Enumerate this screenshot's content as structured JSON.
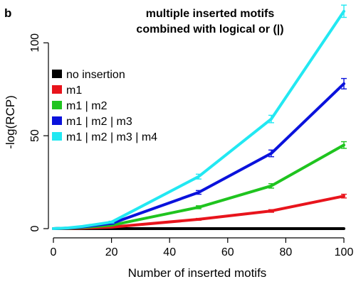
{
  "panel_label": "b",
  "chart_data": {
    "type": "line",
    "title_lines": [
      "multiple inserted motifs",
      "combined with logical or (|)"
    ],
    "xlabel": "Number of inserted motifs",
    "ylabel": "-log(RCP)",
    "xlim": [
      0,
      100
    ],
    "ylim": [
      0,
      120
    ],
    "xticks": [
      0,
      20,
      40,
      60,
      80,
      100
    ],
    "yticks": [
      0,
      50,
      100
    ],
    "grid": false,
    "legend_position": "left",
    "x": [
      0,
      5,
      10,
      20,
      50,
      75,
      100
    ],
    "series": [
      {
        "name": "no insertion",
        "color": "#000000",
        "values": [
          0,
          0,
          0,
          0,
          0,
          0,
          0
        ],
        "errors": [
          0,
          0,
          0,
          0,
          0,
          0,
          0
        ]
      },
      {
        "name": "m1",
        "color": "#e8141c",
        "values": [
          0,
          0.1,
          0.3,
          0.8,
          5,
          9.5,
          17.5
        ],
        "errors": [
          0,
          0,
          0,
          0.2,
          0.5,
          0.7,
          1
        ]
      },
      {
        "name": "m1 | m2",
        "color": "#1fc41f",
        "values": [
          0,
          0.2,
          0.6,
          1.8,
          11.5,
          23,
          45
        ],
        "errors": [
          0,
          0,
          0.1,
          0.3,
          0.8,
          1.2,
          1.8
        ]
      },
      {
        "name": "m1 | m2 | m3",
        "color": "#0a12dc",
        "values": [
          0,
          0.3,
          0.9,
          2.8,
          19.5,
          40.5,
          78
        ],
        "errors": [
          0,
          0,
          0.1,
          0.4,
          1,
          1.8,
          2.8
        ]
      },
      {
        "name": "m1 | m2 | m3 | m4",
        "color": "#22e8f2",
        "values": [
          0,
          0.4,
          1.2,
          3.5,
          28,
          59,
          117
        ],
        "errors": [
          0,
          0,
          0.2,
          0.5,
          1.3,
          2,
          3.3
        ]
      }
    ]
  }
}
